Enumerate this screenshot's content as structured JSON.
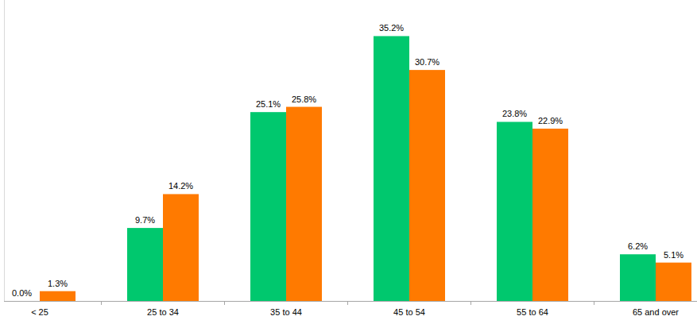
{
  "chart_data": {
    "type": "bar",
    "categories": [
      "< 25",
      "25 to 34",
      "35 to 44",
      "45 to 54",
      "55 to 64",
      "65 and over"
    ],
    "series": [
      {
        "color": "#00c86e",
        "values": [
          0.0,
          9.7,
          25.1,
          35.2,
          23.8,
          6.2
        ],
        "value_labels": [
          "0.0%",
          "9.7%",
          "25.1%",
          "35.2%",
          "23.8%",
          "6.2%"
        ]
      },
      {
        "color": "#ff7a00",
        "values": [
          1.3,
          14.2,
          25.8,
          30.7,
          22.9,
          5.1
        ],
        "value_labels": [
          "1.3%",
          "14.2%",
          "25.8%",
          "30.7%",
          "22.9%",
          "5.1%"
        ]
      }
    ],
    "ylim": [
      0,
      40
    ],
    "grid": false,
    "data_labels": true,
    "tick_labels": "x"
  }
}
